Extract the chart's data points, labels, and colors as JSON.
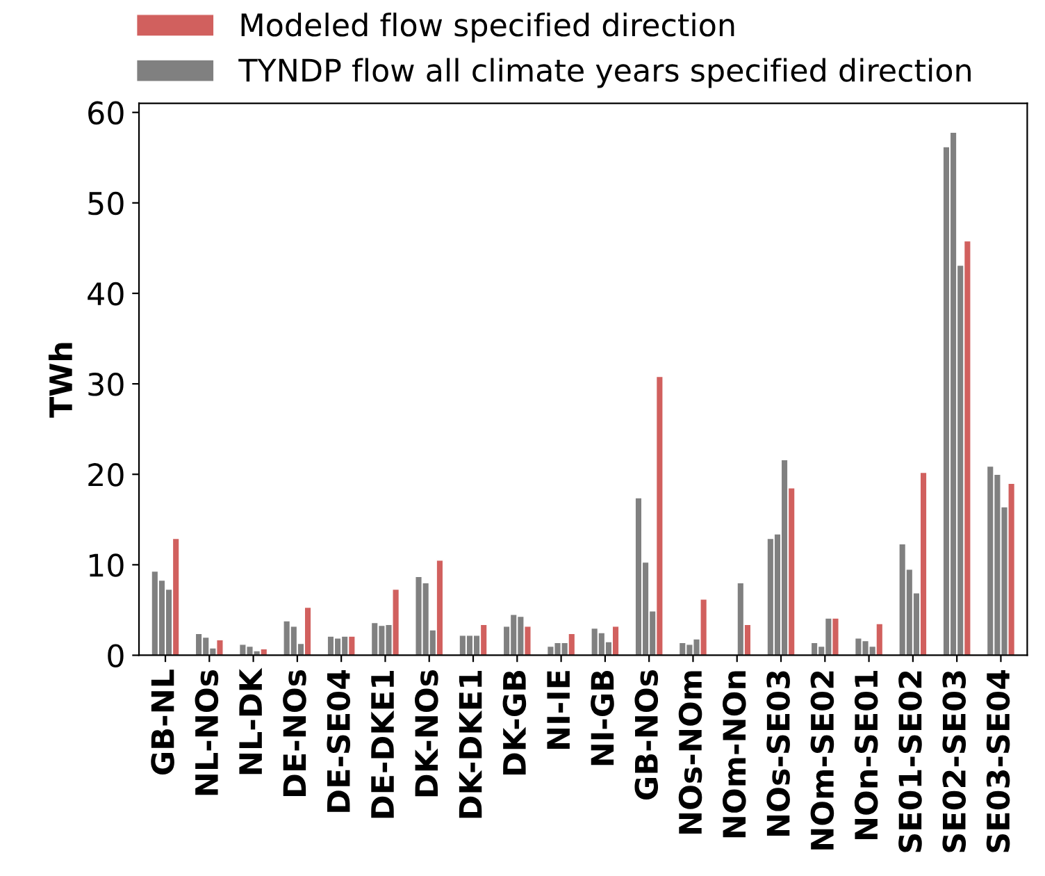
{
  "chart_data": {
    "type": "bar",
    "ylabel": "TWh",
    "categories": [
      "GB-NL",
      "NL-NOs",
      "NL-DK",
      "DE-NOs",
      "DE-SE04",
      "DE-DKE1",
      "DK-NOs",
      "DK-DKE1",
      "DK-GB",
      "NI-IE",
      "NI-GB",
      "GB-NOs",
      "NOs-NOm",
      "NOm-NOn",
      "NOs-SE03",
      "NOm-SE02",
      "NOn-SE01",
      "SE01-SE02",
      "SE02-SE03",
      "SE03-SE04"
    ],
    "series": [
      {
        "name": "TYNDP flow all climate years specified direction",
        "color": "#808080",
        "values": [
          9.3,
          2.4,
          1.2,
          3.8,
          2.1,
          3.6,
          8.7,
          2.2,
          3.2,
          1.0,
          3.0,
          17.4,
          1.4,
          null,
          12.9,
          1.4,
          1.9,
          12.3,
          56.2,
          20.9
        ]
      },
      {
        "color": "#808080",
        "values": [
          8.3,
          2.0,
          1.0,
          3.2,
          1.9,
          3.3,
          8.0,
          2.2,
          4.5,
          1.4,
          2.5,
          10.3,
          1.2,
          null,
          13.4,
          1.0,
          1.6,
          9.5,
          57.8,
          20.0
        ]
      },
      {
        "color": "#808080",
        "values": [
          7.3,
          0.8,
          0.5,
          1.3,
          2.1,
          3.4,
          2.8,
          2.2,
          4.3,
          1.4,
          1.5,
          4.9,
          1.8,
          8.0,
          21.6,
          4.1,
          1.0,
          6.9,
          43.1,
          16.4
        ]
      },
      {
        "name": "Modeled flow specified direction",
        "color": "#d1605e",
        "values": [
          12.9,
          1.7,
          0.7,
          5.3,
          2.1,
          7.3,
          10.5,
          3.4,
          3.2,
          2.4,
          3.2,
          30.8,
          6.2,
          3.4,
          18.5,
          4.1,
          3.5,
          20.2,
          45.8,
          19.0
        ]
      }
    ],
    "ylim": [
      0,
      61
    ],
    "yticks": [
      0,
      10,
      20,
      30,
      40,
      50,
      60
    ],
    "grid": false,
    "legend": "top left"
  }
}
